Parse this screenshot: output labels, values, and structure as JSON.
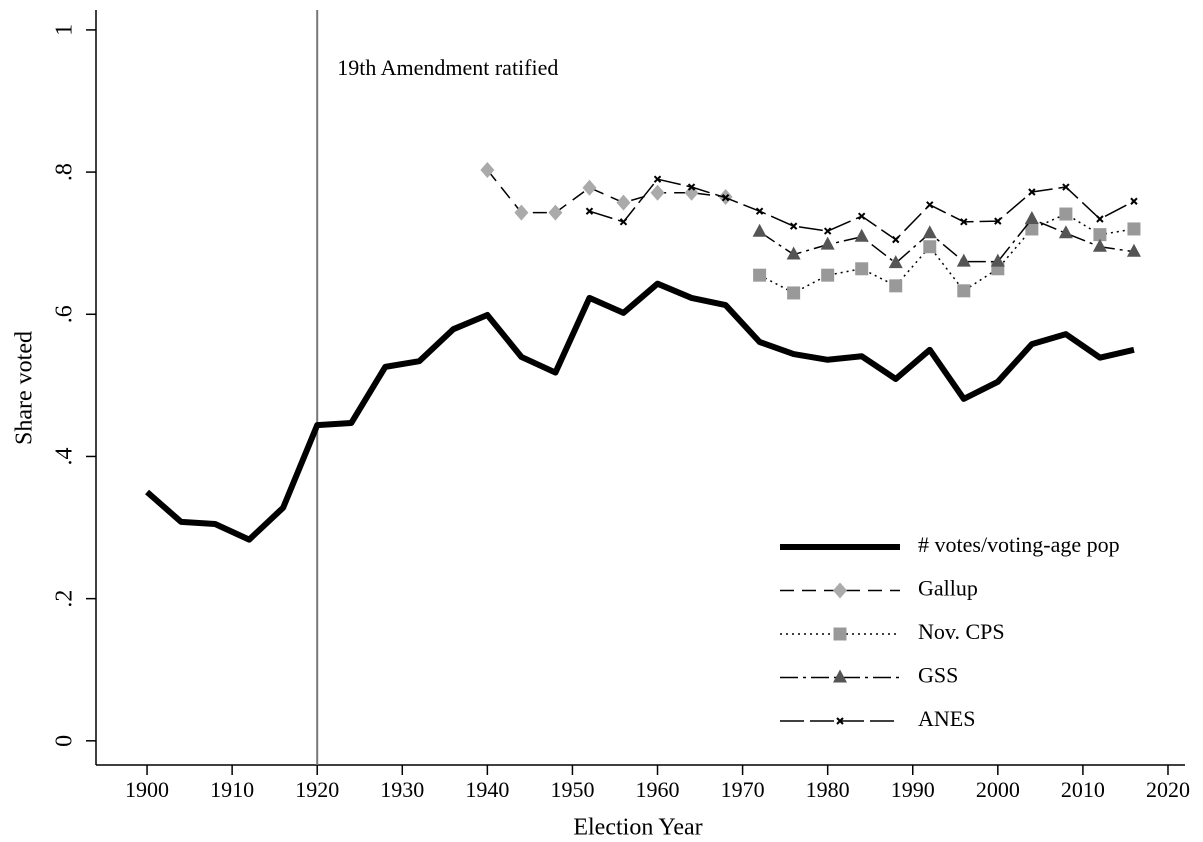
{
  "chart_data": {
    "type": "line",
    "xlabel": "Election Year",
    "ylabel": "Share voted",
    "xlim": [
      1894,
      2022
    ],
    "ylim": [
      -0.034,
      1.028
    ],
    "xticks": [
      1900,
      1910,
      1920,
      1930,
      1940,
      1950,
      1960,
      1970,
      1980,
      1990,
      2000,
      2010,
      2020
    ],
    "yticks": [
      0,
      {
        "value": 0.2,
        "label": ".2"
      },
      {
        "value": 0.4,
        "label": ".4"
      },
      {
        "value": 0.6,
        "label": ".6"
      },
      {
        "value": 0.8,
        "label": ".8"
      },
      1
    ],
    "legend": "lower right",
    "annotations": [
      {
        "text": "19th Amendment ratified",
        "x": 1920
      }
    ],
    "series": [
      {
        "name": "# votes/voting-age pop",
        "color": "#000000",
        "width": 6,
        "dash": "none",
        "marker": "none",
        "x": [
          1900,
          1904,
          1908,
          1912,
          1916,
          1920,
          1924,
          1928,
          1932,
          1936,
          1940,
          1944,
          1948,
          1952,
          1956,
          1960,
          1964,
          1968,
          1972,
          1976,
          1980,
          1984,
          1988,
          1992,
          1996,
          2000,
          2004,
          2008,
          2012,
          2016
        ],
        "values": [
          0.35,
          0.308,
          0.305,
          0.283,
          0.328,
          0.444,
          0.447,
          0.526,
          0.534,
          0.579,
          0.599,
          0.54,
          0.518,
          0.623,
          0.602,
          0.643,
          0.623,
          0.613,
          0.561,
          0.544,
          0.536,
          0.541,
          0.509,
          0.55,
          0.481,
          0.505,
          0.558,
          0.572,
          0.539,
          0.55
        ]
      },
      {
        "name": "Gallup",
        "color": "#000000",
        "width": 1.5,
        "dash": "14,8",
        "marker": "diamond",
        "marker_color": "#aaaaaa",
        "x": [
          1940,
          1944,
          1948,
          1952,
          1956,
          1960,
          1964,
          1968
        ],
        "values": [
          0.803,
          0.743,
          0.743,
          0.778,
          0.757,
          0.771,
          0.771,
          0.765
        ]
      },
      {
        "name": "Nov. CPS",
        "color": "#000000",
        "width": 1.5,
        "dash": "2,4",
        "marker": "square",
        "marker_color": "#999999",
        "x": [
          1972,
          1976,
          1980,
          1984,
          1988,
          1992,
          1996,
          2000,
          2004,
          2008,
          2012,
          2016
        ],
        "values": [
          0.655,
          0.63,
          0.655,
          0.664,
          0.64,
          0.695,
          0.633,
          0.664,
          0.72,
          0.741,
          0.712,
          0.72
        ]
      },
      {
        "name": "GSS",
        "color": "#000000",
        "width": 1.5,
        "dash": "18,5,3,5",
        "marker": "triangle",
        "marker_color": "#555555",
        "x": [
          1972,
          1976,
          1980,
          1984,
          1988,
          1992,
          1996,
          2000,
          2004,
          2008,
          2012,
          2016
        ],
        "values": [
          0.716,
          0.684,
          0.698,
          0.709,
          0.672,
          0.714,
          0.674,
          0.674,
          0.734,
          0.714,
          0.695,
          0.688
        ]
      },
      {
        "name": "ANES",
        "color": "#000000",
        "width": 1.5,
        "dash": "24,6",
        "marker": "x",
        "marker_color": "#000000",
        "x": [
          1952,
          1956,
          1960,
          1964,
          1968,
          1972,
          1976,
          1980,
          1984,
          1988,
          1992,
          1996,
          2000,
          2004,
          2008,
          2012,
          2016
        ],
        "values": [
          0.745,
          0.73,
          0.79,
          0.779,
          0.764,
          0.745,
          0.724,
          0.717,
          0.738,
          0.705,
          0.754,
          0.73,
          0.731,
          0.772,
          0.779,
          0.734,
          0.759
        ]
      }
    ]
  }
}
